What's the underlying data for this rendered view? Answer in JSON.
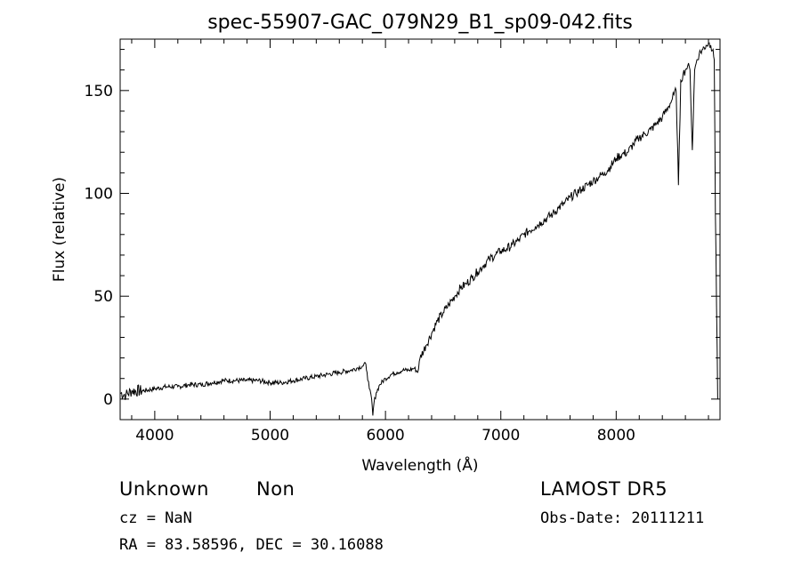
{
  "chart_data": {
    "type": "line",
    "title": "spec-55907-GAC_079N29_B1_sp09-042.fits",
    "xlabel": "Wavelength (Å)",
    "ylabel": "Flux (relative)",
    "xlim": [
      3700,
      8900
    ],
    "ylim": [
      -10,
      175
    ],
    "x_ticks": [
      4000,
      5000,
      6000,
      7000,
      8000
    ],
    "y_ticks": [
      0,
      50,
      100,
      150
    ],
    "grid": false,
    "series": [
      {
        "x": [
          3700,
          3750,
          3800,
          3900,
          4000,
          4100,
          4200,
          4300,
          4400,
          4500,
          4600,
          4700,
          4800,
          4900,
          5000,
          5100,
          5200,
          5300,
          5400,
          5500,
          5600,
          5700,
          5750,
          5800,
          5830,
          5840,
          5860,
          5880,
          5890,
          5900,
          5920,
          5950,
          6000,
          6050,
          6100,
          6150,
          6200,
          6250,
          6280,
          6300,
          6350,
          6400,
          6450,
          6500,
          6550,
          6600,
          6650,
          6700,
          6750,
          6800,
          6850,
          6900,
          6950,
          7000,
          7050,
          7100,
          7150,
          7200,
          7250,
          7300,
          7350,
          7400,
          7450,
          7500,
          7550,
          7600,
          7650,
          7700,
          7750,
          7800,
          7850,
          7900,
          7950,
          8000,
          8050,
          8100,
          8150,
          8200,
          8250,
          8300,
          8350,
          8400,
          8450,
          8480,
          8500,
          8520,
          8540,
          8560,
          8580,
          8600,
          8620,
          8640,
          8660,
          8680,
          8700,
          8720,
          8750,
          8780,
          8800,
          8820,
          8840,
          8850,
          8855,
          8860,
          8865,
          8870,
          8880
        ],
        "y": [
          3,
          2,
          4,
          4,
          5,
          6,
          6,
          7,
          7,
          8,
          9,
          9,
          9,
          9,
          8,
          8,
          9,
          10,
          11,
          12,
          13,
          14,
          15,
          16,
          17,
          13,
          5,
          0,
          -8,
          -2,
          3,
          7,
          10,
          12,
          13,
          14,
          14,
          15,
          13,
          20,
          26,
          32,
          38,
          42,
          46,
          50,
          54,
          56,
          59,
          62,
          65,
          68,
          70,
          72,
          73,
          75,
          77,
          80,
          82,
          84,
          86,
          88,
          90,
          93,
          95,
          98,
          100,
          102,
          104,
          106,
          108,
          110,
          113,
          117,
          119,
          120,
          124,
          127,
          129,
          131,
          134,
          137,
          142,
          145,
          148,
          150,
          104,
          155,
          158,
          160,
          162,
          160,
          121,
          160,
          165,
          168,
          170,
          172,
          173,
          172,
          170,
          165,
          130,
          90,
          70,
          45,
          0
        ]
      }
    ]
  },
  "footer": {
    "object_class": "Unknown",
    "subclass": "Non",
    "cz": "cz = NaN",
    "coords": "RA =  83.58596, DEC =  30.16088",
    "survey": "LAMOST DR5",
    "obs_date": "Obs-Date: 20111211"
  }
}
